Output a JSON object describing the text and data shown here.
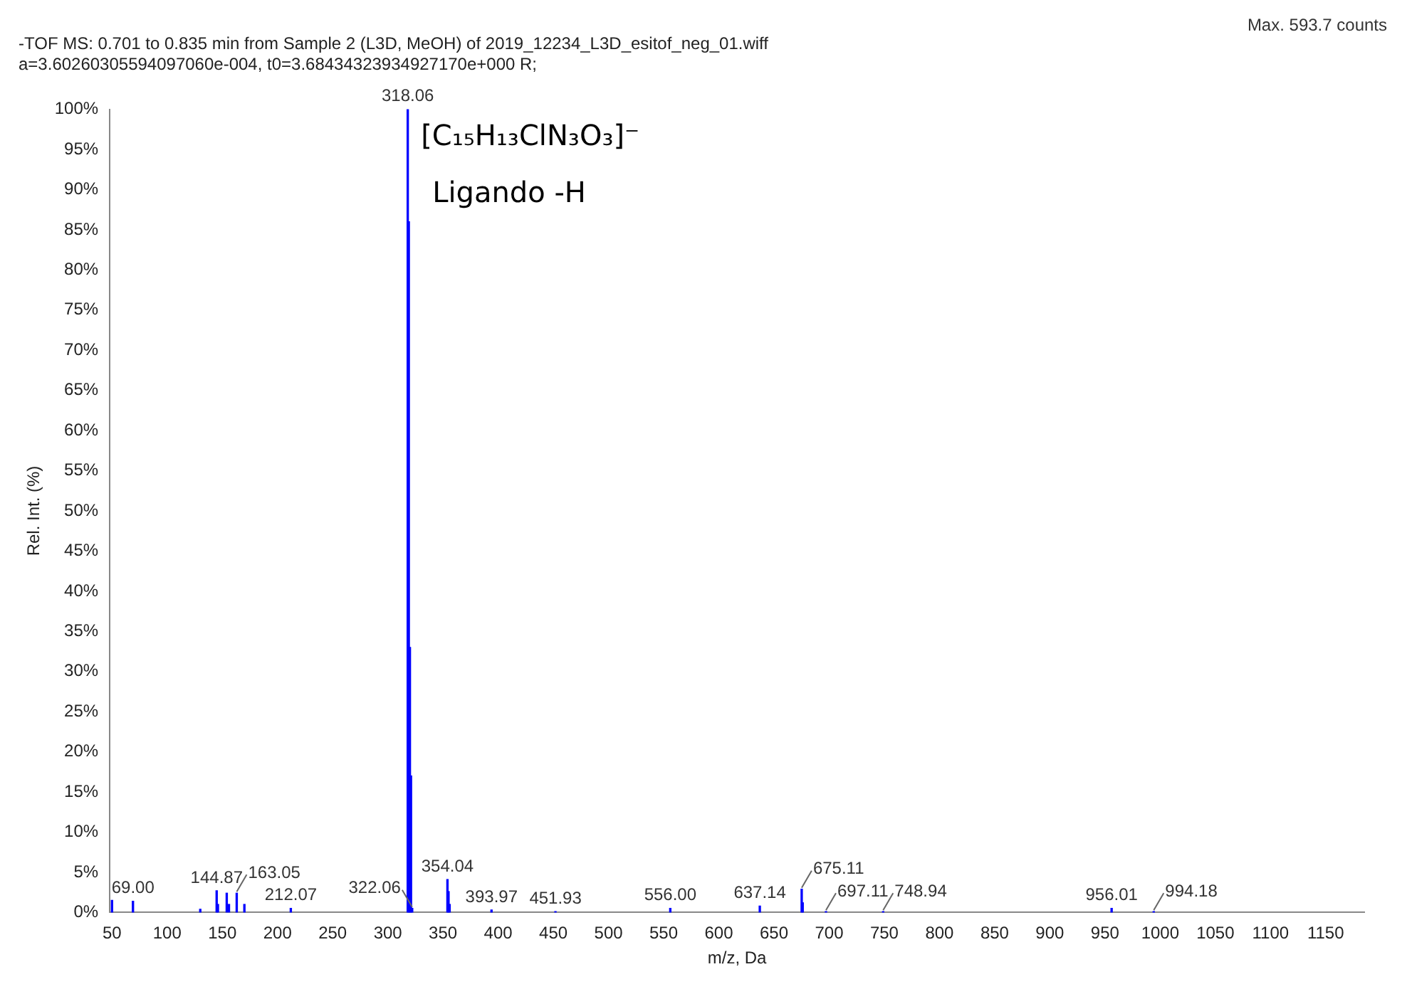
{
  "chart_data": {
    "type": "bar",
    "title": "-TOF MS: 0.701 to 0.835 min from Sample 2 (L3D, MeOH) of 2019_12234_L3D_esitof_neg_01.wiff",
    "subtitle": "a=3.60260305594097060e-004, t0=3.68434323934927170e+000 R;",
    "xlabel": "m/z, Da",
    "ylabel": "Rel. Int. (%)",
    "annotations": [
      "Max. 593.7 counts",
      "[C₁₅H₁₃ClN₃O₃]⁻",
      "Ligando -H",
      {
        "text": "69.00",
        "x": 69.0,
        "y": 1.4
      },
      {
        "text": "144.87",
        "x": 144.87,
        "y": 2.7
      },
      {
        "text": "163.05",
        "x": 163.05,
        "y": 2.4
      },
      {
        "text": "212.07",
        "x": 212.07,
        "y": 0.5
      },
      {
        "text": "318.06",
        "x": 318.06,
        "y": 100
      },
      {
        "text": "322.06",
        "x": 322.06,
        "y": 0.5
      },
      {
        "text": "354.04",
        "x": 354.04,
        "y": 4.1
      },
      {
        "text": "393.97",
        "x": 393.97,
        "y": 0.3
      },
      {
        "text": "451.93",
        "x": 451.93,
        "y": 0.1
      },
      {
        "text": "556.00",
        "x": 556.0,
        "y": 0.5
      },
      {
        "text": "637.14",
        "x": 637.14,
        "y": 0.8
      },
      {
        "text": "675.11",
        "x": 675.11,
        "y": 2.9
      },
      {
        "text": "697.11",
        "x": 697.11,
        "y": 0.1
      },
      {
        "text": "748.94",
        "x": 748.94,
        "y": 0.1
      },
      {
        "text": "956.01",
        "x": 956.01,
        "y": 0.5
      },
      {
        "text": "994.18",
        "x": 994.18,
        "y": 0.1
      }
    ],
    "series": [
      {
        "color": "#0000ff",
        "x": [
          50,
          69.0,
          130,
          144.87,
          146,
          154,
          156,
          163.05,
          170,
          212.07,
          318.06,
          319,
          320,
          321,
          322.06,
          354.04,
          355,
          356,
          393.97,
          451.93,
          556.0,
          637.14,
          675.11,
          676,
          697.11,
          748.94,
          956.01,
          994.18
        ],
        "values": [
          1.5,
          1.4,
          0.4,
          2.7,
          1,
          2.4,
          1,
          2.4,
          1,
          0.5,
          100,
          86,
          33,
          17,
          0.5,
          4.1,
          2.6,
          1,
          0.3,
          0.1,
          0.5,
          0.8,
          2.9,
          1.2,
          0.1,
          0.1,
          0.5,
          0.1
        ]
      }
    ],
    "xlim": [
      48,
      1185
    ],
    "xticks": [
      50,
      100,
      150,
      200,
      250,
      300,
      350,
      400,
      450,
      500,
      550,
      600,
      650,
      700,
      750,
      800,
      850,
      900,
      950,
      1000,
      1050,
      1100,
      1150
    ],
    "ylim": [
      0,
      100
    ],
    "yticks": [
      {
        "value": 0,
        "label": "0%"
      },
      {
        "value": 5,
        "label": "5%"
      },
      {
        "value": 10,
        "label": "10%"
      },
      {
        "value": 15,
        "label": "15%"
      },
      {
        "value": 20,
        "label": "20%"
      },
      {
        "value": 25,
        "label": "25%"
      },
      {
        "value": 30,
        "label": "30%"
      },
      {
        "value": 35,
        "label": "35%"
      },
      {
        "value": 40,
        "label": "40%"
      },
      {
        "value": 45,
        "label": "45%"
      },
      {
        "value": 50,
        "label": "50%"
      },
      {
        "value": 55,
        "label": "55%"
      },
      {
        "value": 60,
        "label": "60%"
      },
      {
        "value": 65,
        "label": "65%"
      },
      {
        "value": 70,
        "label": "70%"
      },
      {
        "value": 75,
        "label": "75%"
      },
      {
        "value": 80,
        "label": "80%"
      },
      {
        "value": 85,
        "label": "85%"
      },
      {
        "value": 90,
        "label": "90%"
      },
      {
        "value": 95,
        "label": "95%"
      },
      {
        "value": 100,
        "label": "100%"
      }
    ],
    "grid": false,
    "legend": false
  }
}
